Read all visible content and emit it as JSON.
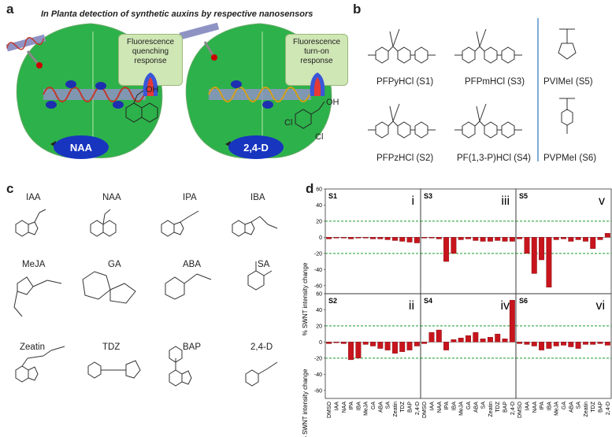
{
  "panel_a": {
    "label": "a",
    "title": "In Planta detection of synthetic auxins by respective nanosensors",
    "response_left": [
      "Fluorescence",
      "quenching",
      "response"
    ],
    "response_right": [
      "Fluorescence",
      "turn-on",
      "response"
    ],
    "auxin_left": "NAA",
    "auxin_right": "2,4-D",
    "oh": "OH",
    "cl": "Cl"
  },
  "panel_b": {
    "label": "b",
    "polymers": [
      {
        "name": "PFPyHCl (S1)"
      },
      {
        "name": "PFPmHCl (S3)"
      },
      {
        "name": "PVIMeI (S5)"
      },
      {
        "name": "PFPzHCl (S2)"
      },
      {
        "name": "PF(1,3-P)HCl (S4)"
      },
      {
        "name": "PVPMeI (S6)"
      }
    ]
  },
  "panel_c": {
    "label": "c",
    "molecules": [
      "IAA",
      "NAA",
      "IPA",
      "IBA",
      "MeJA",
      "GA",
      "ABA",
      "SA",
      "Zeatin",
      "TDZ",
      "BAP",
      "2,4-D"
    ]
  },
  "panel_d": {
    "label": "d",
    "ylabel": "% SWNT intensity change"
  },
  "chart_data": {
    "type": "bar",
    "ylabel": "% SWNT intensity change",
    "ylim": [
      -70,
      60
    ],
    "yticks": [
      -60,
      -40,
      -20,
      0,
      20,
      40,
      60
    ],
    "threshold_lines": [
      20,
      -20
    ],
    "categories": [
      "DMSO",
      "IAA",
      "NAA",
      "IPA",
      "IBA",
      "MeJA",
      "GA",
      "ABA",
      "SA",
      "Zeatin",
      "TDZ",
      "BAP",
      "2,4-D"
    ],
    "panels": [
      {
        "sensor": "S1",
        "roman": "i",
        "values": [
          -2,
          -1,
          -1,
          -2,
          -1,
          -1,
          -2,
          -2,
          -3,
          -4,
          -5,
          -6,
          -7
        ]
      },
      {
        "sensor": "S3",
        "roman": "iii",
        "values": [
          -1,
          -1,
          -2,
          -30,
          -20,
          -3,
          -2,
          -4,
          -5,
          -5,
          -4,
          -5,
          -5
        ]
      },
      {
        "sensor": "S5",
        "roman": "v",
        "values": [
          -2,
          -20,
          -45,
          -28,
          -62,
          -3,
          -2,
          -5,
          -3,
          -5,
          -14,
          -3,
          5
        ]
      },
      {
        "sensor": "S2",
        "roman": "ii",
        "values": [
          -2,
          -1,
          -2,
          -22,
          -20,
          -3,
          -5,
          -8,
          -10,
          -14,
          -12,
          -10,
          -5
        ]
      },
      {
        "sensor": "S4",
        "roman": "iv",
        "values": [
          -2,
          12,
          15,
          -10,
          3,
          5,
          8,
          12,
          4,
          6,
          10,
          4,
          52
        ]
      },
      {
        "sensor": "S6",
        "roman": "vi",
        "values": [
          -2,
          -3,
          -5,
          -10,
          -8,
          -5,
          -4,
          -6,
          -8,
          -3,
          -3,
          -2,
          -4
        ]
      }
    ]
  }
}
